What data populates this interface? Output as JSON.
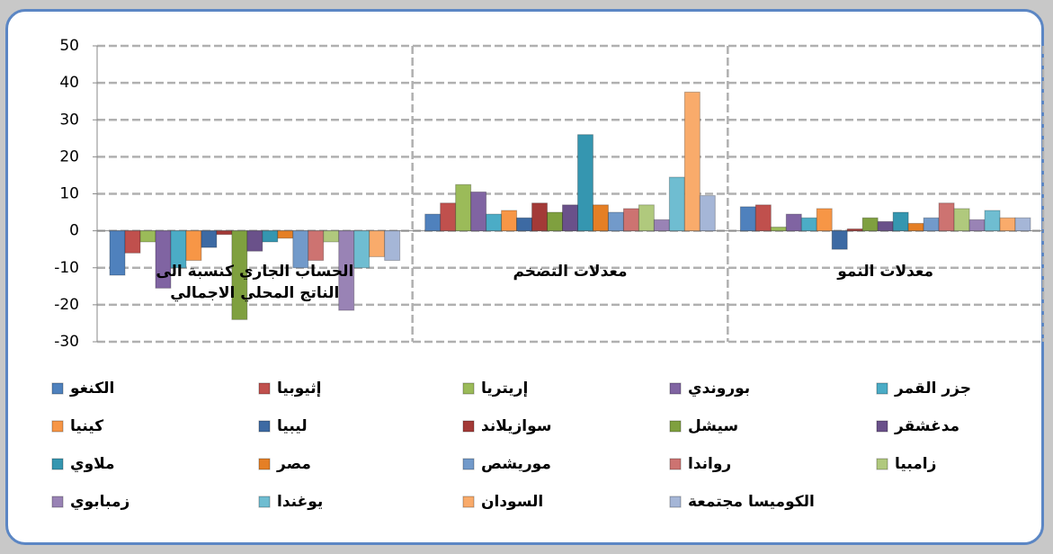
{
  "chart_data": {
    "type": "bar",
    "categories": [
      "الحساب الجاري كنسبة الى الناتج المحلي الاجمالي",
      "معدلات التضخم",
      "معدلات النمو"
    ],
    "ylim": [
      -30,
      50
    ],
    "yticks": [
      -30,
      -20,
      -10,
      0,
      10,
      20,
      30,
      40,
      50
    ],
    "grid": true,
    "series": [
      {
        "name": "الكنغو",
        "color": "#4f81bd",
        "values": [
          -12,
          4.5,
          6.5
        ]
      },
      {
        "name": "إثيوبيا",
        "color": "#c0504d",
        "values": [
          -6,
          7.5,
          7
        ]
      },
      {
        "name": "إريتريا",
        "color": "#9bbb59",
        "values": [
          -3,
          12.5,
          1
        ]
      },
      {
        "name": "بوروندي",
        "color": "#8064a2",
        "values": [
          -15.5,
          10.5,
          4.5
        ]
      },
      {
        "name": "جزر القمر",
        "color": "#4bacc6",
        "values": [
          -10,
          4.5,
          3.5
        ]
      },
      {
        "name": "كينيا",
        "color": "#f79646",
        "values": [
          -8,
          5.5,
          6
        ]
      },
      {
        "name": "ليبيا",
        "color": "#3d6aa3",
        "values": [
          -4.5,
          3.5,
          -5
        ]
      },
      {
        "name": "سوازيلاند",
        "color": "#a33a37",
        "values": [
          -1,
          7.5,
          0.5
        ]
      },
      {
        "name": "سيشل",
        "color": "#7fa03f",
        "values": [
          -24,
          5,
          3.5
        ]
      },
      {
        "name": "مدغشقر",
        "color": "#6a518a",
        "values": [
          -5.5,
          7,
          2.5
        ]
      },
      {
        "name": "ملاوي",
        "color": "#3596b0",
        "values": [
          -3,
          26,
          5
        ]
      },
      {
        "name": "مصر",
        "color": "#e57f25",
        "values": [
          -2,
          7,
          2
        ]
      },
      {
        "name": "موريشص",
        "color": "#729aca",
        "values": [
          -10,
          5,
          3.5
        ]
      },
      {
        "name": "رواندا",
        "color": "#cd7371",
        "values": [
          -8,
          6,
          7.5
        ]
      },
      {
        "name": "زامبيا",
        "color": "#b0c97d",
        "values": [
          -3,
          7,
          6
        ]
      },
      {
        "name": "زمبابوي",
        "color": "#9983b5",
        "values": [
          -21.5,
          3,
          3
        ]
      },
      {
        "name": "يوغندا",
        "color": "#6fbdd1",
        "values": [
          -10,
          14.5,
          5.5
        ]
      },
      {
        "name": "السودان",
        "color": "#f9ab6b",
        "values": [
          -7,
          37.5,
          3.5
        ]
      },
      {
        "name": "الكوميسا مجتمعة",
        "color": "#a5b6d7",
        "values": [
          -8,
          9.5,
          3.5
        ]
      }
    ]
  }
}
